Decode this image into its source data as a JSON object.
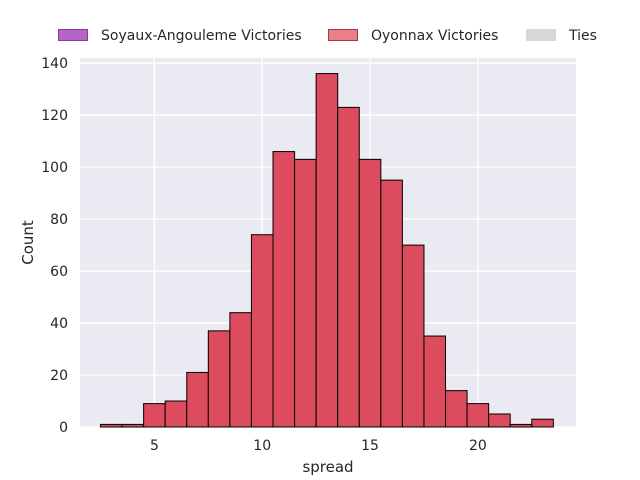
{
  "chart_data": {
    "type": "bar",
    "title": "",
    "xlabel": "spread",
    "ylabel": "Count",
    "xlim": [
      1.55,
      24.55
    ],
    "ylim": [
      0,
      142
    ],
    "grid": true,
    "legend_position": "top-center",
    "legend": [
      {
        "label": "Soyaux-Angouleme Victories",
        "color": "#b565c4",
        "edge": "#8a3a9e"
      },
      {
        "label": "Oyonnax Victories",
        "color": "#e98088",
        "edge": "#9c3c44"
      },
      {
        "label": "Ties",
        "color": "#d8d8d8",
        "edge": "#d8d8d8"
      }
    ],
    "x_ticks": [
      5,
      10,
      15,
      20
    ],
    "y_ticks": [
      0,
      20,
      40,
      60,
      80,
      100,
      120,
      140
    ],
    "bin_width": 1,
    "bar_color": "#dc4b5e",
    "bar_edge": "#000000",
    "series": [
      {
        "name": "Oyonnax Victories",
        "bins": [
          {
            "x0": 2.5,
            "x1": 3.5,
            "count": 1
          },
          {
            "x0": 3.5,
            "x1": 4.5,
            "count": 1
          },
          {
            "x0": 4.5,
            "x1": 5.5,
            "count": 9
          },
          {
            "x0": 5.5,
            "x1": 6.5,
            "count": 10
          },
          {
            "x0": 6.5,
            "x1": 7.5,
            "count": 21
          },
          {
            "x0": 7.5,
            "x1": 8.5,
            "count": 37
          },
          {
            "x0": 8.5,
            "x1": 9.5,
            "count": 44
          },
          {
            "x0": 9.5,
            "x1": 10.5,
            "count": 74
          },
          {
            "x0": 10.5,
            "x1": 11.5,
            "count": 106
          },
          {
            "x0": 11.5,
            "x1": 12.5,
            "count": 103
          },
          {
            "x0": 12.5,
            "x1": 13.5,
            "count": 136
          },
          {
            "x0": 13.5,
            "x1": 14.5,
            "count": 123
          },
          {
            "x0": 14.5,
            "x1": 15.5,
            "count": 103
          },
          {
            "x0": 15.5,
            "x1": 16.5,
            "count": 95
          },
          {
            "x0": 16.5,
            "x1": 17.5,
            "count": 70
          },
          {
            "x0": 17.5,
            "x1": 18.5,
            "count": 35
          },
          {
            "x0": 18.5,
            "x1": 19.5,
            "count": 14
          },
          {
            "x0": 19.5,
            "x1": 20.5,
            "count": 9
          },
          {
            "x0": 20.5,
            "x1": 21.5,
            "count": 5
          },
          {
            "x0": 21.5,
            "x1": 22.5,
            "count": 1
          },
          {
            "x0": 22.5,
            "x1": 23.5,
            "count": 3
          }
        ]
      }
    ]
  }
}
